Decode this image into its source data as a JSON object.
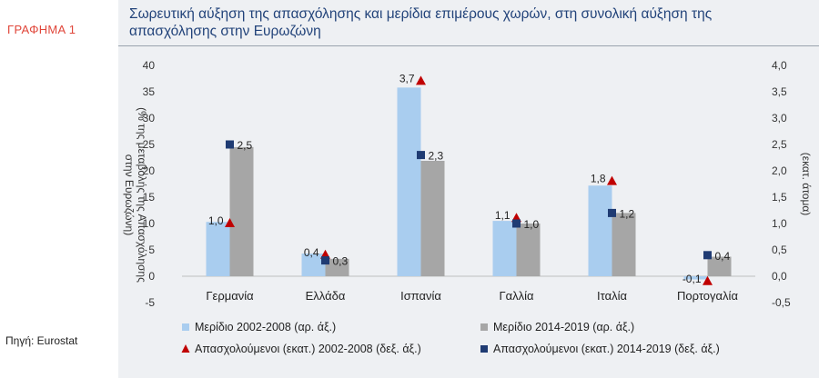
{
  "figure_label": "ΓΡΑΦΗΜΑ 1",
  "source_text": "Πηγή: Eurostat",
  "chart_data": {
    "type": "bar",
    "title": "Σωρευτική αύξηση της απασχόλησης και μερίδια επιμέρους χωρών, στη συνολική αύξηση της απασχόλησης στην Ευρωζώνη",
    "categories": [
      "Γερμανία",
      "Ελλάδα",
      "Ισπανία",
      "Γαλλία",
      "Ιταλία",
      "Πορτογαλία"
    ],
    "ylabel_left": "(% της μεταβολής της Απασχόλησης στην Ευρωζώνη)",
    "ylabel_right": "(εκατ. άτομα)",
    "ylim_left": [
      -5,
      40
    ],
    "ylim_right": [
      -0.5,
      4.0
    ],
    "yticks_left": [
      "-5",
      "0",
      "5",
      "10",
      "15",
      "20",
      "25",
      "30",
      "35",
      "40"
    ],
    "yticks_right": [
      "-0,5",
      "0,0",
      "0,5",
      "1,0",
      "1,5",
      "2,0",
      "2,5",
      "3,0",
      "3,5",
      "4,0"
    ],
    "grid": false,
    "legend_position": "bottom",
    "series": [
      {
        "name": "Μερίδιο 2002-2008 (αρ. άξ.)",
        "kind": "bar",
        "axis": "left",
        "color": "#a9cdef",
        "values": [
          10.3,
          4.3,
          35.8,
          10.5,
          17.2,
          -0.6
        ]
      },
      {
        "name": "Μερίδιο 2014-2019 (αρ. άξ.)",
        "kind": "bar",
        "axis": "left",
        "color": "#a6a6a6",
        "values": [
          24.5,
          3.3,
          21.9,
          10.0,
          12.0,
          3.7
        ]
      },
      {
        "name": "Απασχολούμενοι (εκατ.) 2002-2008 (δεξ. άξ.)",
        "kind": "marker",
        "marker": "triangle",
        "axis": "right",
        "color": "#c00000",
        "values": [
          1.0,
          0.4,
          3.7,
          1.1,
          1.8,
          -0.1
        ],
        "labels": [
          "1,0",
          "0,4",
          "3,7",
          "1,1",
          "1,8",
          "-0,1"
        ]
      },
      {
        "name": "Απασχολούμενοι (εκατ.) 2014-2019 (δεξ. άξ.)",
        "kind": "marker",
        "marker": "square",
        "axis": "right",
        "color": "#1f3b73",
        "values": [
          2.5,
          0.3,
          2.3,
          1.0,
          1.2,
          0.4
        ],
        "labels": [
          "2,5",
          "0,3",
          "2,3",
          "1,0",
          "1,2",
          "0,4"
        ]
      }
    ],
    "legend": [
      "Μερίδιο 2002-2008 (αρ. άξ.)",
      "Μερίδιο 2014-2019 (αρ. άξ.)",
      "Απασχολούμενοι (εκατ.) 2002-2008 (δεξ. άξ.)",
      "Απασχολούμενοι (εκατ.) 2014-2019 (δεξ. άξ.)"
    ]
  }
}
